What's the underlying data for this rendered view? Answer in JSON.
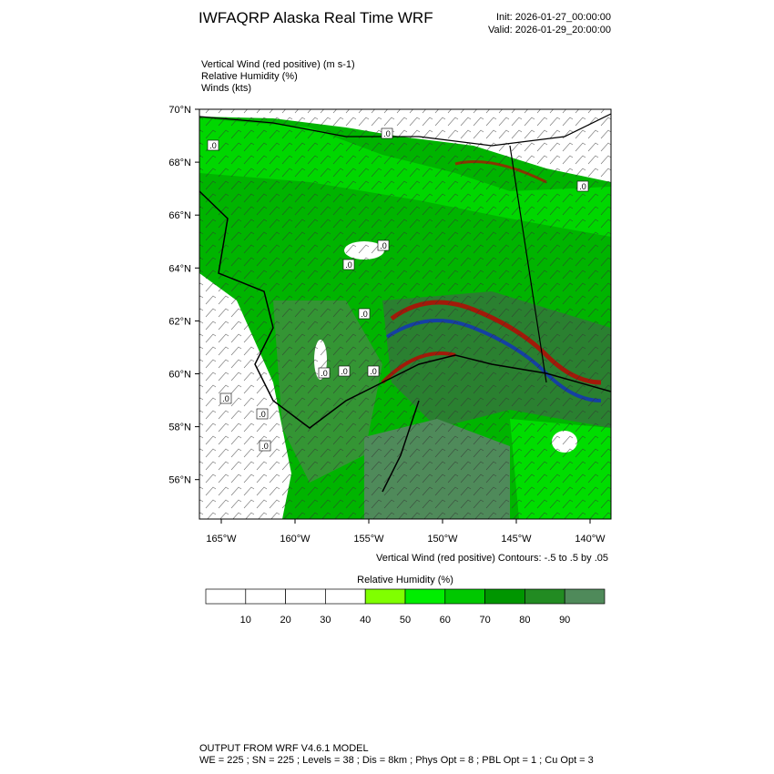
{
  "header": {
    "title": "IWFAQRP Alaska Real Time WRF",
    "init": "Init: 2026-01-27_00:00:00",
    "valid": "Valid: 2026-01-29_20:00:00"
  },
  "fields": [
    "Vertical Wind (red positive)   (m s-1)",
    "Relative Humidity   (%)",
    "Winds   (kts)"
  ],
  "map": {
    "lat_labels": [
      "70°N",
      "68°N",
      "66°N",
      "64°N",
      "62°N",
      "60°N",
      "58°N",
      "56°N"
    ],
    "lon_labels": [
      "165°W",
      "160°W",
      "155°W",
      "150°W",
      "145°W",
      "140°W"
    ],
    "contour_label": ".0",
    "contour_note": "Vertical Wind (red positive) Contours: -.5 to .5 by .05"
  },
  "colorbar": {
    "title": "Relative Humidity  (%)",
    "labels": [
      "10",
      "20",
      "30",
      "40",
      "50",
      "60",
      "70",
      "80",
      "90"
    ],
    "colors": [
      "#ffffff",
      "#ffffff",
      "#ffffff",
      "#ffffff",
      "#80ff00",
      "#00ee00",
      "#00c800",
      "#009600",
      "#228b22",
      "#4f8a5a"
    ]
  },
  "footer": {
    "line1": "OUTPUT FROM WRF V4.6.1 MODEL",
    "line2": "WE = 225 ; SN = 225 ; Levels = 38 ; Dis = 8km ; Phys Opt = 8 ; PBL Opt = 1 ; Cu Opt = 3"
  }
}
